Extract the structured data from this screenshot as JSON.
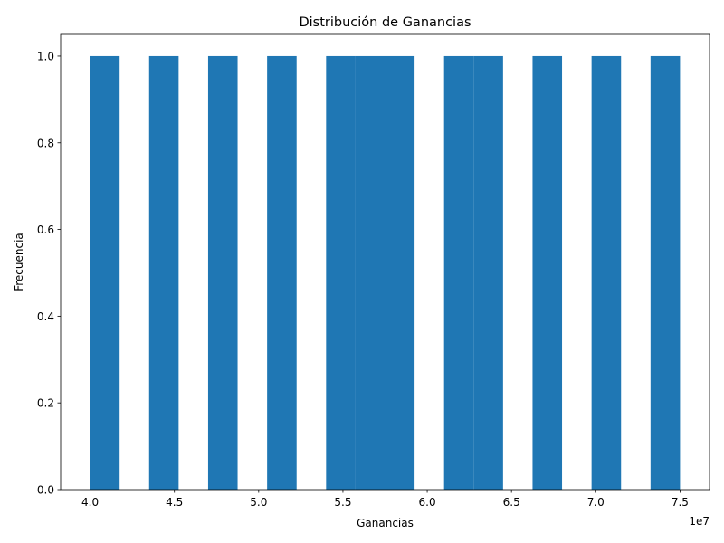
{
  "chart_data": {
    "type": "bar",
    "title": "Distribución de Ganancias",
    "xlabel": "Ganancias",
    "ylabel": "Frecuencia",
    "x_offset_text": "1e7",
    "xlim": [
      3.825,
      7.675
    ],
    "ylim": [
      0,
      1.05
    ],
    "bar_color": "#1f77b4",
    "x_ticks": [
      {
        "value": 4.0,
        "label": "4.0"
      },
      {
        "value": 4.5,
        "label": "4.5"
      },
      {
        "value": 5.0,
        "label": "5.0"
      },
      {
        "value": 5.5,
        "label": "5.5"
      },
      {
        "value": 6.0,
        "label": "6.0"
      },
      {
        "value": 6.5,
        "label": "6.5"
      },
      {
        "value": 7.0,
        "label": "7.0"
      },
      {
        "value": 7.5,
        "label": "7.5"
      }
    ],
    "y_ticks": [
      {
        "value": 0.0,
        "label": "0.0"
      },
      {
        "value": 0.2,
        "label": "0.2"
      },
      {
        "value": 0.4,
        "label": "0.4"
      },
      {
        "value": 0.6,
        "label": "0.6"
      },
      {
        "value": 0.8,
        "label": "0.8"
      },
      {
        "value": 1.0,
        "label": "1.0"
      }
    ],
    "bins": [
      {
        "x0": 4.0,
        "x1": 4.175,
        "value": 1
      },
      {
        "x0": 4.35,
        "x1": 4.525,
        "value": 1
      },
      {
        "x0": 4.7,
        "x1": 4.875,
        "value": 1
      },
      {
        "x0": 5.05,
        "x1": 5.225,
        "value": 1
      },
      {
        "x0": 5.4,
        "x1": 5.575,
        "value": 1
      },
      {
        "x0": 5.575,
        "x1": 5.75,
        "value": 1
      },
      {
        "x0": 5.75,
        "x1": 5.925,
        "value": 1
      },
      {
        "x0": 6.1,
        "x1": 6.275,
        "value": 1
      },
      {
        "x0": 6.275,
        "x1": 6.45,
        "value": 1
      },
      {
        "x0": 6.625,
        "x1": 6.8,
        "value": 1
      },
      {
        "x0": 6.975,
        "x1": 7.15,
        "value": 1
      },
      {
        "x0": 7.325,
        "x1": 7.5,
        "value": 1
      }
    ]
  }
}
